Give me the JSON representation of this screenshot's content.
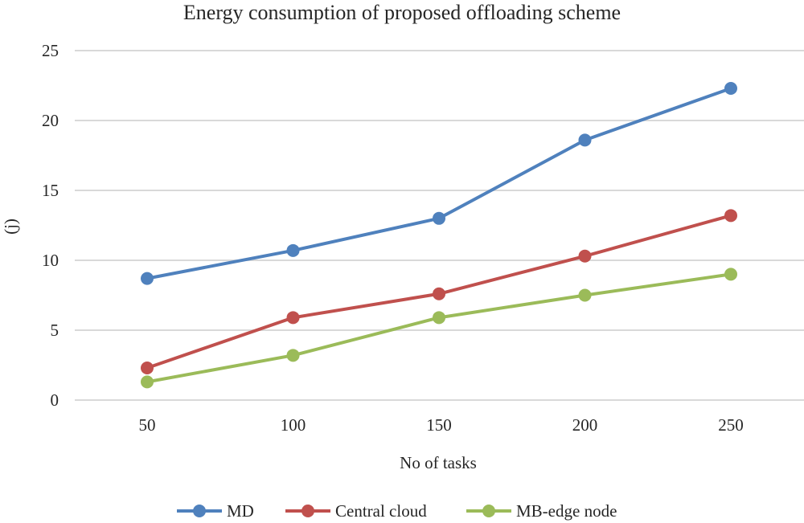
{
  "chart_data": {
    "type": "line",
    "title": "Energy consumption of proposed offloading scheme",
    "xlabel": "No of tasks",
    "ylabel": "(j)",
    "categories": [
      "50",
      "100",
      "150",
      "200",
      "250"
    ],
    "ylim": [
      0,
      25
    ],
    "yticks": [
      0,
      5,
      10,
      15,
      20,
      25
    ],
    "grid": true,
    "legend_position": "bottom",
    "series": [
      {
        "name": "MD",
        "color": "#4f81bd",
        "values": [
          8.7,
          10.7,
          13.0,
          18.6,
          22.3
        ]
      },
      {
        "name": "Central cloud",
        "color": "#c0504d",
        "values": [
          2.3,
          5.9,
          7.6,
          10.3,
          13.2
        ]
      },
      {
        "name": "MB-edge node",
        "color": "#9bbb59",
        "values": [
          1.3,
          3.2,
          5.9,
          7.5,
          9.0
        ]
      }
    ]
  }
}
